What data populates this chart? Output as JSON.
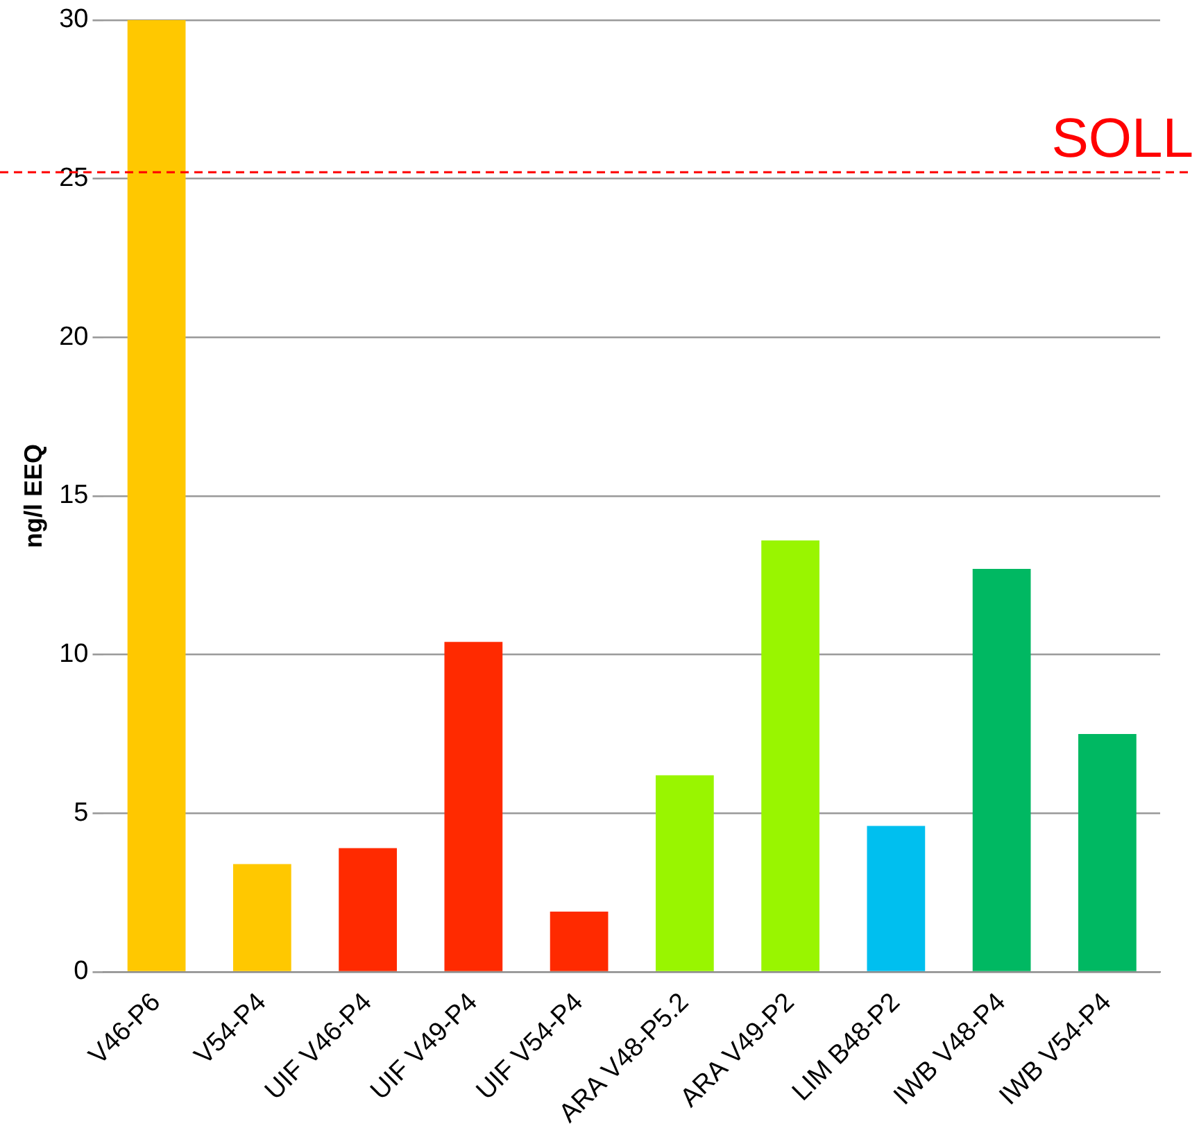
{
  "chart_data": {
    "type": "bar",
    "ylabel": "ng/l EEQ",
    "categories": [
      "V46-P6",
      "V54-P4",
      "UIF V46-P4",
      "UIF V49-P4",
      "UIF V54-P4",
      "ARA V48-P5.2",
      "ARA V49-P2",
      "LIM B48-P2",
      "IWB V48-P4",
      "IWB V54-P4"
    ],
    "values": [
      30,
      3.4,
      3.9,
      10.4,
      1.9,
      6.2,
      13.6,
      4.6,
      12.7,
      7.5
    ],
    "colors": [
      "#ffc800",
      "#ffc800",
      "#ff2a00",
      "#ff2a00",
      "#ff2a00",
      "#99f500",
      "#99f500",
      "#00bfef",
      "#00b862",
      "#00b862"
    ],
    "ylim": [
      0,
      30
    ],
    "yticks": [
      0,
      5,
      10,
      15,
      20,
      25,
      30
    ],
    "grid": "y",
    "legend": false,
    "ref_lines": [
      {
        "axis": "y",
        "value": 25.2,
        "label": "SOLL",
        "color": "#ff0000",
        "line_style": "dashed"
      }
    ]
  }
}
